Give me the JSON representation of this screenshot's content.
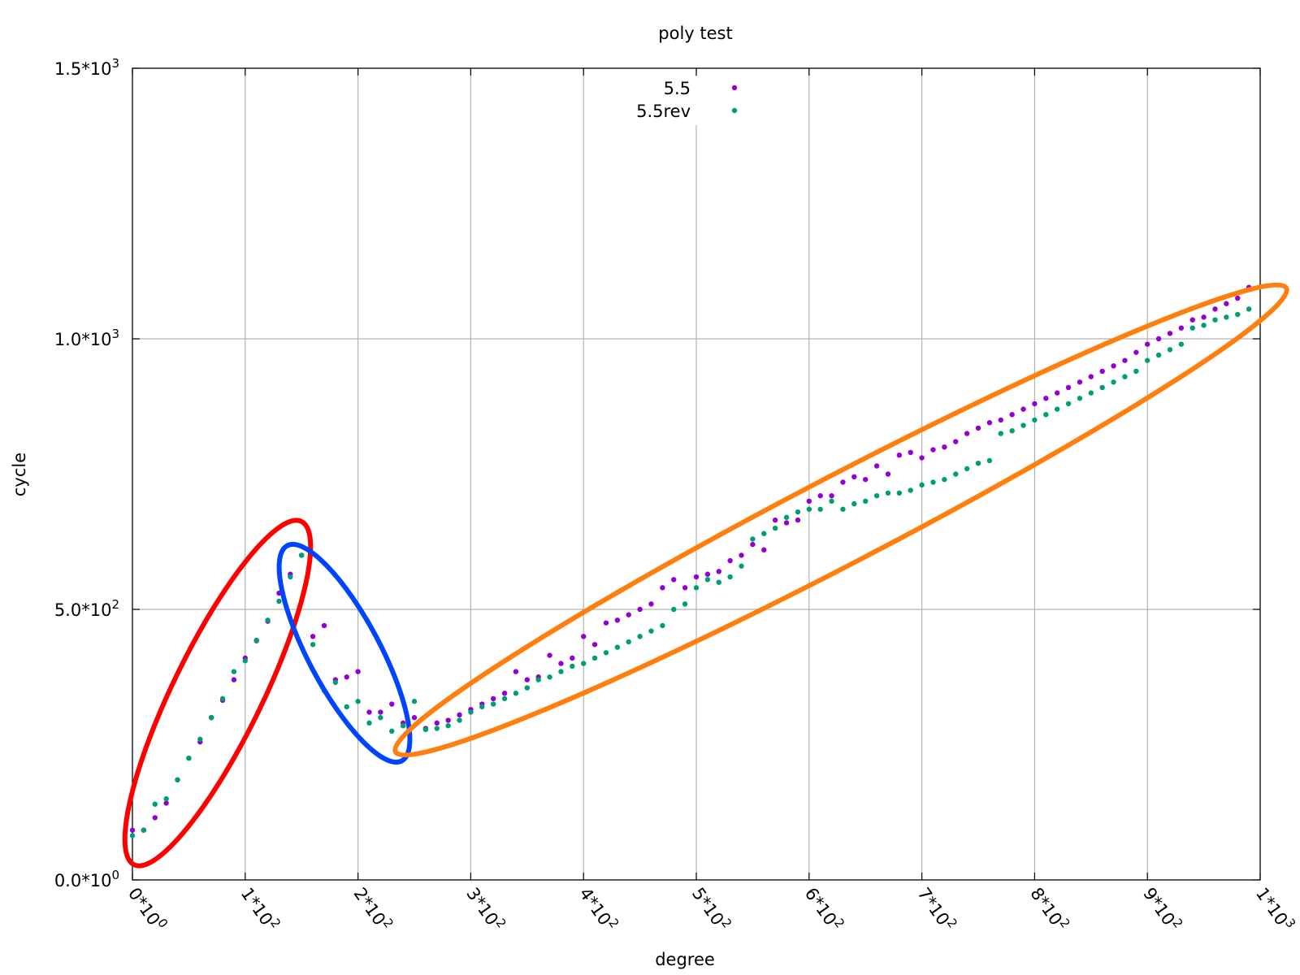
{
  "chart_data": {
    "type": "scatter",
    "title": "poly test",
    "xlabel": "degree",
    "ylabel": "cycle",
    "xlim": [
      0,
      1000
    ],
    "ylim": [
      0,
      1500
    ],
    "grid": true,
    "legend_position": "top-center",
    "x_ticks": [
      {
        "value": 0,
        "mantissa": "0",
        "exponent": "0"
      },
      {
        "value": 100,
        "mantissa": "1",
        "exponent": "2"
      },
      {
        "value": 200,
        "mantissa": "2",
        "exponent": "2"
      },
      {
        "value": 300,
        "mantissa": "3",
        "exponent": "2"
      },
      {
        "value": 400,
        "mantissa": "4",
        "exponent": "2"
      },
      {
        "value": 500,
        "mantissa": "5",
        "exponent": "2"
      },
      {
        "value": 600,
        "mantissa": "6",
        "exponent": "2"
      },
      {
        "value": 700,
        "mantissa": "7",
        "exponent": "2"
      },
      {
        "value": 800,
        "mantissa": "8",
        "exponent": "2"
      },
      {
        "value": 900,
        "mantissa": "9",
        "exponent": "2"
      },
      {
        "value": 1000,
        "mantissa": "1",
        "exponent": "3"
      }
    ],
    "y_ticks": [
      {
        "value": 0,
        "mantissa": "0.0",
        "exponent": "0"
      },
      {
        "value": 500,
        "mantissa": "5.0",
        "exponent": "2"
      },
      {
        "value": 1000,
        "mantissa": "1.0",
        "exponent": "3"
      },
      {
        "value": 1500,
        "mantissa": "1.5",
        "exponent": "3"
      }
    ],
    "series": [
      {
        "name": "5.5",
        "color": "#9400d3",
        "x": [
          0,
          10,
          20,
          30,
          40,
          50,
          60,
          70,
          80,
          90,
          100,
          110,
          120,
          130,
          140,
          150,
          160,
          170,
          180,
          190,
          200,
          210,
          220,
          230,
          240,
          250,
          260,
          270,
          280,
          290,
          300,
          310,
          320,
          330,
          340,
          350,
          360,
          370,
          380,
          390,
          400,
          410,
          420,
          430,
          440,
          450,
          460,
          470,
          480,
          490,
          500,
          510,
          520,
          530,
          540,
          550,
          560,
          570,
          580,
          590,
          600,
          610,
          620,
          630,
          640,
          650,
          660,
          670,
          680,
          690,
          700,
          710,
          720,
          730,
          740,
          750,
          760,
          770,
          780,
          790,
          800,
          810,
          820,
          830,
          840,
          850,
          860,
          870,
          880,
          890,
          900,
          910,
          920,
          930,
          940,
          950,
          960,
          970,
          980,
          990
        ],
        "y": [
          92,
          92,
          115,
          142,
          185,
          225,
          255,
          300,
          332,
          370,
          410,
          442,
          478,
          530,
          565,
          600,
          450,
          470,
          370,
          375,
          385,
          310,
          310,
          325,
          290,
          300,
          280,
          290,
          295,
          305,
          315,
          325,
          335,
          345,
          385,
          370,
          375,
          415,
          400,
          410,
          450,
          435,
          475,
          480,
          490,
          500,
          510,
          540,
          555,
          540,
          560,
          565,
          570,
          590,
          600,
          620,
          610,
          665,
          660,
          665,
          700,
          710,
          710,
          735,
          745,
          740,
          765,
          750,
          785,
          790,
          780,
          795,
          800,
          810,
          825,
          835,
          845,
          850,
          860,
          870,
          880,
          890,
          900,
          910,
          920,
          930,
          940,
          950,
          960,
          975,
          990,
          1000,
          1010,
          1020,
          1035,
          1040,
          1055,
          1065,
          1075,
          1095
        ]
      },
      {
        "name": "5.5rev",
        "color": "#009e73",
        "x": [
          0,
          10,
          20,
          30,
          40,
          50,
          60,
          70,
          80,
          90,
          100,
          110,
          120,
          130,
          140,
          150,
          160,
          170,
          180,
          190,
          200,
          210,
          220,
          230,
          240,
          250,
          260,
          270,
          280,
          290,
          300,
          310,
          320,
          330,
          340,
          350,
          360,
          370,
          380,
          390,
          400,
          410,
          420,
          430,
          440,
          450,
          460,
          470,
          480,
          490,
          500,
          510,
          520,
          530,
          540,
          550,
          560,
          570,
          580,
          590,
          600,
          610,
          620,
          630,
          640,
          650,
          660,
          670,
          680,
          690,
          700,
          710,
          720,
          730,
          740,
          750,
          760,
          770,
          780,
          790,
          800,
          810,
          820,
          830,
          840,
          850,
          860,
          870,
          880,
          890,
          900,
          910,
          920,
          930,
          940,
          950,
          960,
          970,
          980,
          990
        ],
        "y": [
          82,
          92,
          140,
          150,
          185,
          225,
          260,
          300,
          335,
          385,
          405,
          443,
          480,
          515,
          560,
          600,
          435,
          350,
          365,
          320,
          330,
          290,
          300,
          275,
          285,
          330,
          278,
          280,
          285,
          295,
          310,
          320,
          325,
          335,
          345,
          355,
          370,
          375,
          385,
          395,
          400,
          410,
          420,
          430,
          440,
          450,
          460,
          470,
          500,
          510,
          540,
          555,
          550,
          560,
          580,
          630,
          640,
          650,
          670,
          680,
          685,
          685,
          700,
          685,
          695,
          700,
          710,
          715,
          715,
          720,
          730,
          735,
          740,
          750,
          760,
          770,
          775,
          825,
          830,
          840,
          850,
          860,
          870,
          880,
          890,
          900,
          910,
          920,
          930,
          940,
          960,
          970,
          980,
          990,
          1020,
          1025,
          1035,
          1040,
          1045,
          1055
        ]
      }
    ],
    "annotations": [
      {
        "shape": "ellipse",
        "color": "#ff0000",
        "label": ""
      },
      {
        "shape": "ellipse",
        "color": "#0044ff",
        "label": ""
      },
      {
        "shape": "ellipse",
        "color": "#ff7f0e",
        "label": ""
      }
    ]
  }
}
